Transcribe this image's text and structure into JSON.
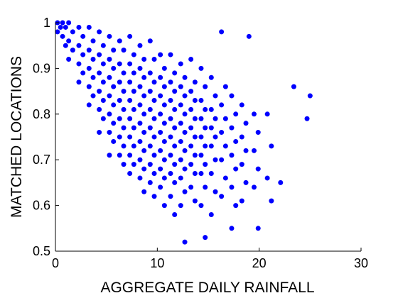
{
  "chart_data": {
    "type": "scatter",
    "xlabel": "AGGREGATE DAILY RAINFALL",
    "ylabel": "MATCHED LOCATIONS",
    "xlim": [
      0,
      30
    ],
    "xticks": [
      0,
      10,
      20,
      30
    ],
    "ylim": [
      0.5,
      1
    ],
    "yticks": [
      0.5,
      0.6,
      0.7,
      0.8,
      0.9,
      1
    ],
    "color": "#0000ff",
    "x": [
      0.2,
      0.5,
      0.2,
      0.7,
      1.0,
      0.7,
      1.0,
      1.3,
      1.7,
      1.3,
      1.7,
      1.3,
      2.3,
      2.7,
      2.3,
      2.7,
      2.3,
      2.7,
      2.3,
      3.3,
      3.7,
      3.3,
      3.7,
      3.3,
      3.7,
      3.3,
      3.7,
      3.3,
      4.3,
      4.7,
      4.3,
      4.7,
      4.3,
      4.7,
      4.3,
      4.7,
      4.3,
      4.7,
      4.3,
      5.3,
      5.7,
      5.3,
      5.7,
      5.3,
      5.7,
      5.3,
      5.7,
      5.3,
      5.7,
      5.3,
      5.7,
      5.3,
      6.3,
      6.7,
      6.3,
      6.7,
      6.3,
      6.7,
      6.3,
      6.7,
      6.3,
      6.7,
      6.3,
      6.7,
      6.3,
      6.7,
      7.3,
      7.7,
      7.3,
      7.7,
      7.3,
      7.7,
      7.3,
      7.7,
      7.3,
      7.7,
      7.3,
      7.7,
      7.3,
      7.7,
      7.3,
      8.3,
      8.7,
      8.3,
      8.7,
      8.3,
      8.7,
      8.3,
      8.7,
      8.3,
      8.7,
      8.3,
      8.7,
      8.3,
      8.7,
      8.3,
      8.7,
      9.3,
      9.7,
      9.3,
      9.7,
      9.3,
      9.7,
      9.3,
      9.7,
      9.3,
      9.7,
      9.3,
      9.7,
      9.3,
      9.7,
      9.3,
      9.7,
      10.3,
      10.7,
      10.3,
      10.7,
      10.3,
      10.7,
      10.3,
      10.7,
      10.3,
      10.7,
      10.3,
      10.7,
      10.3,
      10.7,
      10.3,
      10.7,
      11.3,
      11.7,
      11.3,
      11.7,
      11.3,
      11.7,
      11.3,
      11.7,
      11.3,
      11.7,
      11.3,
      11.7,
      11.3,
      11.7,
      11.3,
      11.7,
      12.3,
      12.7,
      12.3,
      12.7,
      12.3,
      12.7,
      12.3,
      12.7,
      12.3,
      12.7,
      12.3,
      12.7,
      12.3,
      12.7,
      12.3,
      12.7,
      13.3,
      13.7,
      13.3,
      13.7,
      13.3,
      13.7,
      13.3,
      13.7,
      13.3,
      13.7,
      13.3,
      13.7,
      13.3,
      13.7,
      14.3,
      14.7,
      14.3,
      14.7,
      14.3,
      14.7,
      14.3,
      14.7,
      14.3,
      14.7,
      14.3,
      14.7,
      14.3,
      14.7,
      15.3,
      15.7,
      15.3,
      15.7,
      15.3,
      15.7,
      15.3,
      15.7,
      15.3,
      15.7,
      15.3,
      16.3,
      16.7,
      16.3,
      16.7,
      16.3,
      16.7,
      16.3,
      16.7,
      16.3,
      17.3,
      17.7,
      17.3,
      17.7,
      17.3,
      17.7,
      17.3,
      17.7,
      17.3,
      18.3,
      18.7,
      18.3,
      18.7,
      18.3,
      18.7,
      18.3,
      19.0,
      19.5,
      19.9,
      19.5,
      19.9,
      19.5,
      19.9,
      20.8,
      21.2,
      20.8,
      21.2,
      22.1,
      23.4,
      24.7,
      25.0
    ],
    "values": [
      1.0,
      0.99,
      0.98,
      1.0,
      0.99,
      0.97,
      0.95,
      1.0,
      0.98,
      0.96,
      0.94,
      0.92,
      0.99,
      0.97,
      0.95,
      0.93,
      0.91,
      0.89,
      0.87,
      0.99,
      0.96,
      0.94,
      0.92,
      0.9,
      0.88,
      0.86,
      0.84,
      0.82,
      0.98,
      0.95,
      0.93,
      0.91,
      0.89,
      0.87,
      0.85,
      0.83,
      0.81,
      0.79,
      0.76,
      0.97,
      0.94,
      0.92,
      0.9,
      0.88,
      0.86,
      0.84,
      0.82,
      0.8,
      0.78,
      0.76,
      0.74,
      0.71,
      0.96,
      0.94,
      0.91,
      0.89,
      0.87,
      0.85,
      0.83,
      0.81,
      0.79,
      0.77,
      0.75,
      0.73,
      0.71,
      0.69,
      0.97,
      0.93,
      0.91,
      0.89,
      0.87,
      0.85,
      0.83,
      0.81,
      0.79,
      0.77,
      0.75,
      0.73,
      0.71,
      0.69,
      0.67,
      0.95,
      0.92,
      0.9,
      0.88,
      0.86,
      0.84,
      0.82,
      0.8,
      0.78,
      0.76,
      0.74,
      0.72,
      0.7,
      0.68,
      0.66,
      0.63,
      0.96,
      0.92,
      0.89,
      0.87,
      0.85,
      0.83,
      0.81,
      0.79,
      0.77,
      0.75,
      0.73,
      0.71,
      0.69,
      0.67,
      0.65,
      0.62,
      0.93,
      0.9,
      0.88,
      0.86,
      0.84,
      0.82,
      0.8,
      0.78,
      0.76,
      0.74,
      0.72,
      0.7,
      0.68,
      0.66,
      0.64,
      0.6,
      0.93,
      0.89,
      0.87,
      0.85,
      0.83,
      0.81,
      0.79,
      0.77,
      0.75,
      0.73,
      0.71,
      0.69,
      0.67,
      0.65,
      0.62,
      0.58,
      0.91,
      0.88,
      0.86,
      0.84,
      0.82,
      0.8,
      0.78,
      0.76,
      0.74,
      0.72,
      0.7,
      0.68,
      0.66,
      0.63,
      0.6,
      0.52,
      0.92,
      0.87,
      0.85,
      0.83,
      0.81,
      0.79,
      0.77,
      0.75,
      0.73,
      0.71,
      0.69,
      0.67,
      0.64,
      0.61,
      0.9,
      0.86,
      0.83,
      0.81,
      0.79,
      0.77,
      0.75,
      0.73,
      0.71,
      0.69,
      0.67,
      0.64,
      0.6,
      0.53,
      0.88,
      0.84,
      0.81,
      0.79,
      0.77,
      0.75,
      0.73,
      0.7,
      0.67,
      0.63,
      0.58,
      0.98,
      0.86,
      0.82,
      0.79,
      0.76,
      0.73,
      0.7,
      0.66,
      0.62,
      0.84,
      0.8,
      0.77,
      0.74,
      0.71,
      0.68,
      0.64,
      0.6,
      0.55,
      0.82,
      0.78,
      0.75,
      0.72,
      0.69,
      0.65,
      0.61,
      0.97,
      0.8,
      0.76,
      0.72,
      0.68,
      0.64,
      0.55,
      0.8,
      0.73,
      0.66,
      0.61,
      0.65,
      0.86,
      0.79,
      0.84
    ]
  }
}
